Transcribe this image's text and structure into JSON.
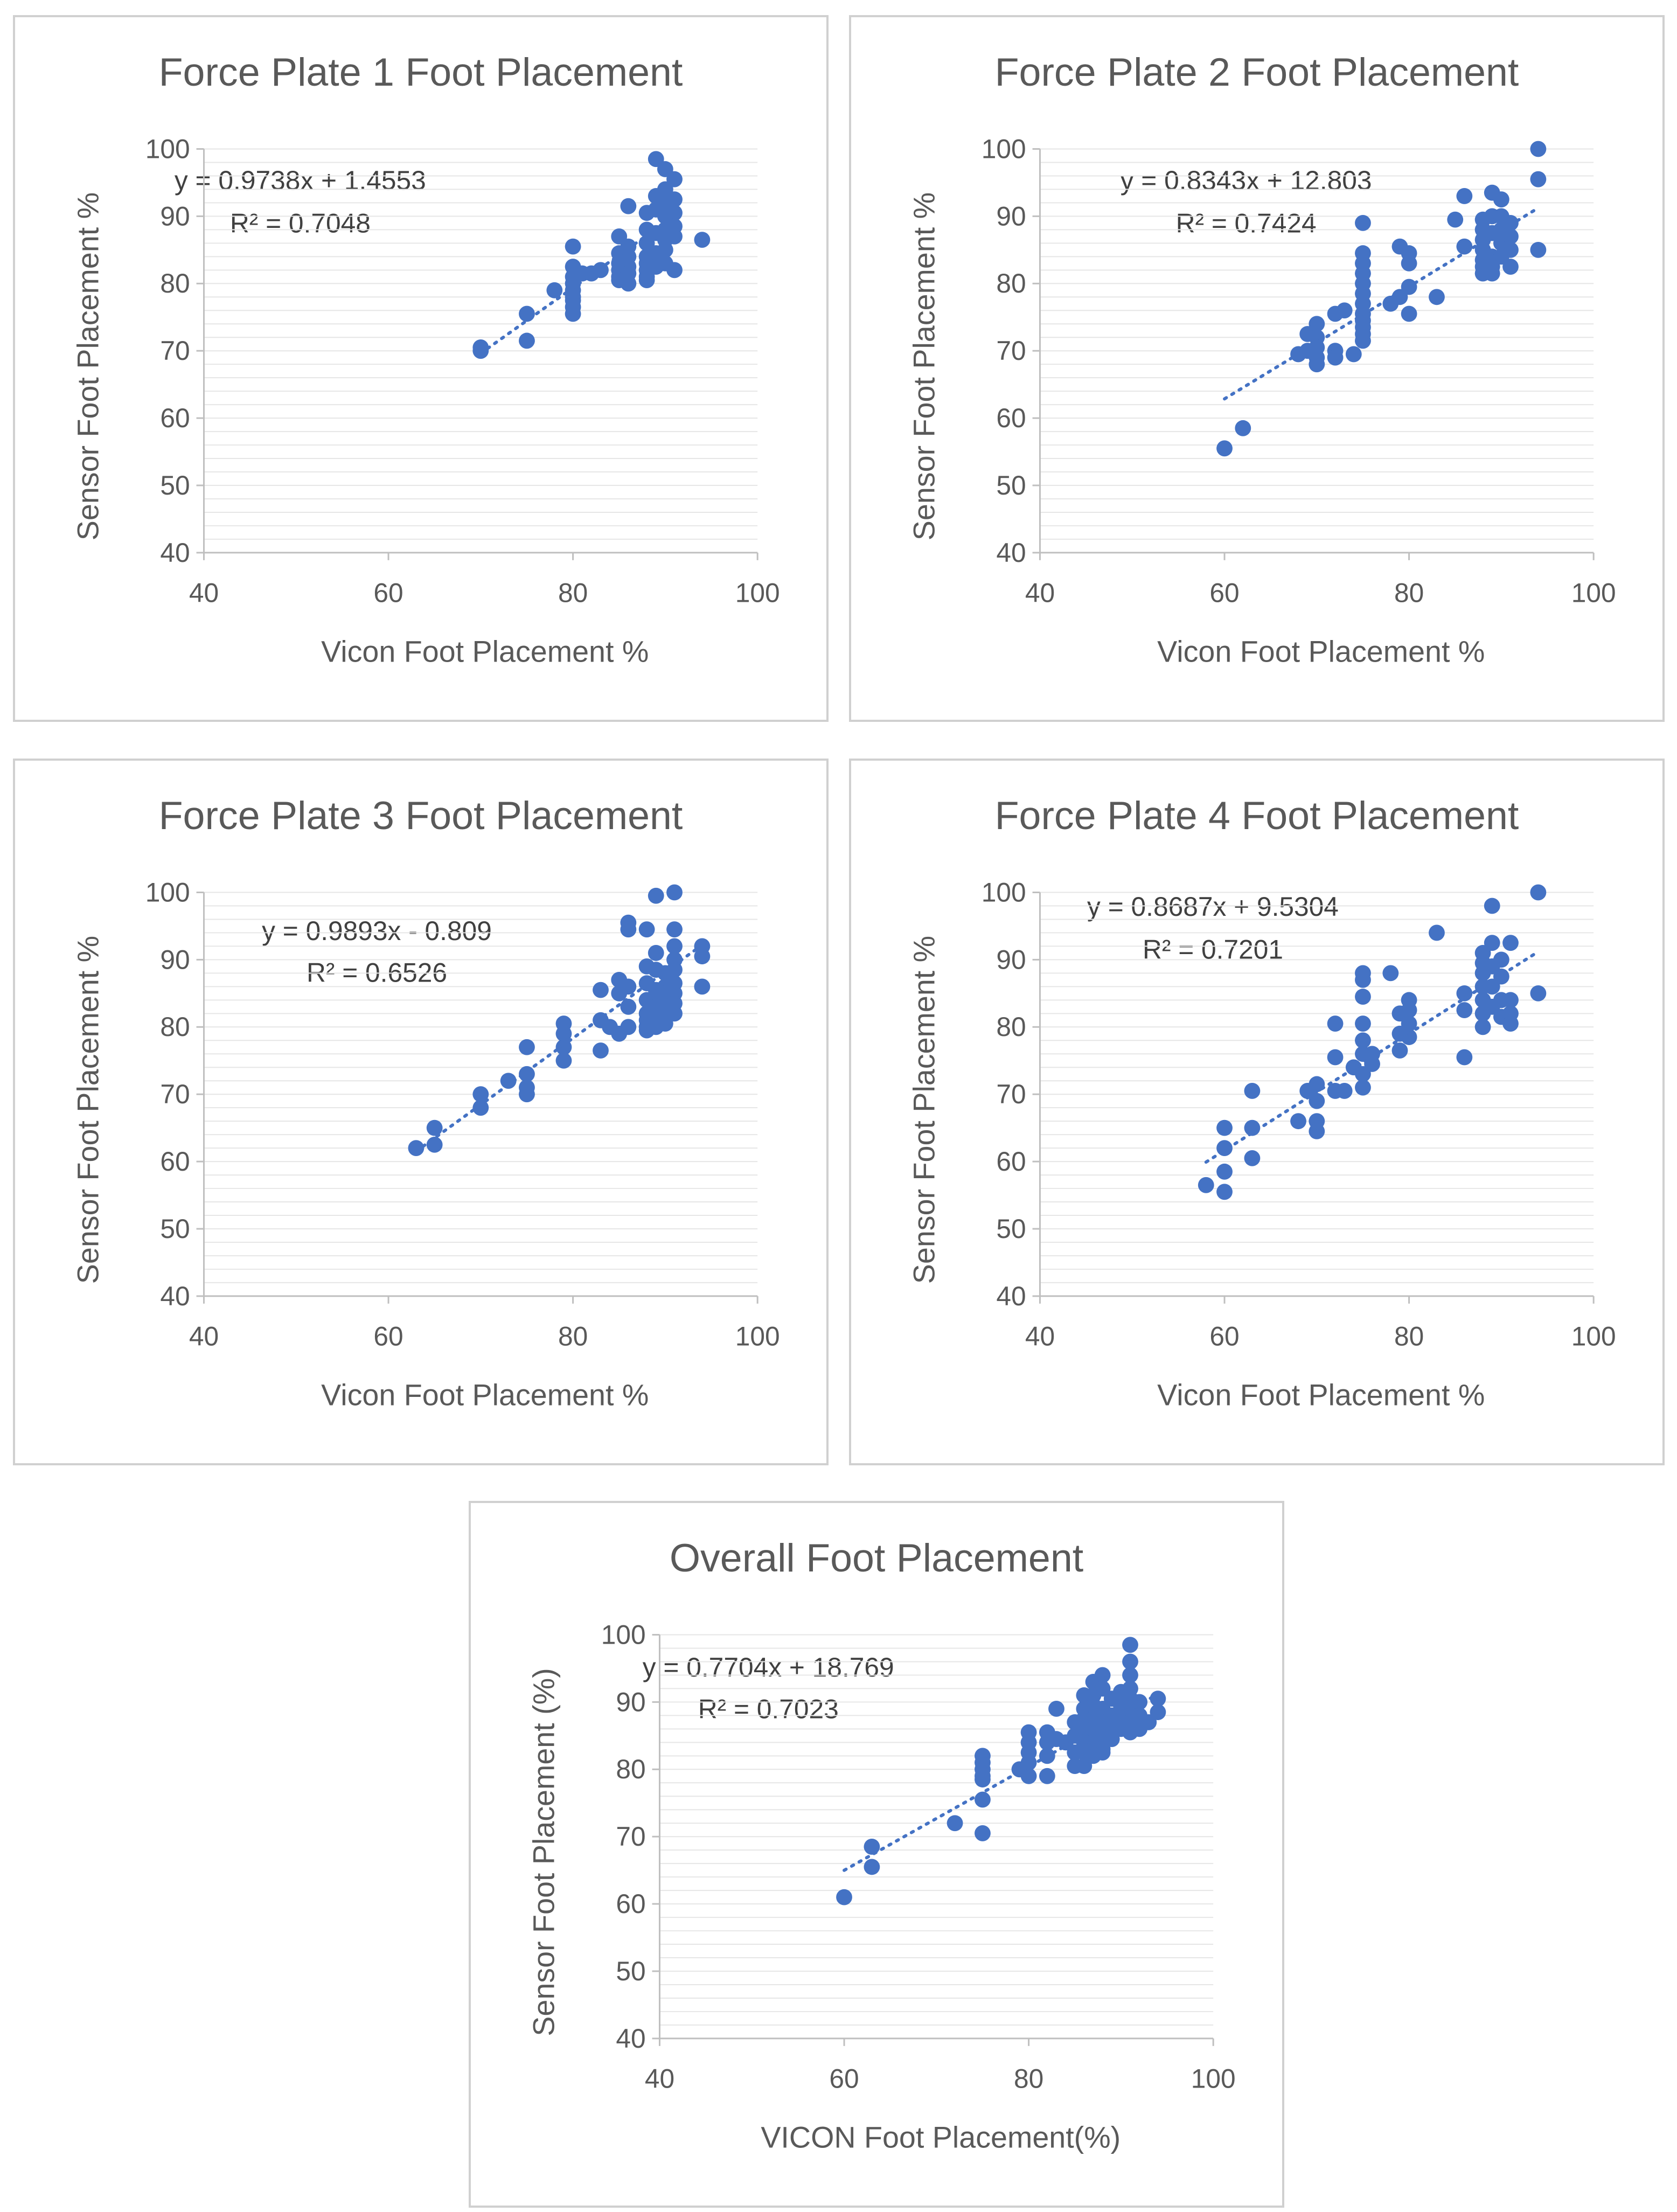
{
  "chart_data": [
    {
      "type": "scatter",
      "title": "Force Plate 1 Foot Placement",
      "xlabel": "Vicon Foot Placement %",
      "ylabel": "Sensor Foot Placement %",
      "xlim": [
        40,
        100
      ],
      "ylim": [
        40,
        100
      ],
      "xticks": [
        40,
        60,
        80,
        100
      ],
      "yticks": [
        40,
        50,
        60,
        70,
        80,
        90,
        100
      ],
      "trendline": {
        "slope": 0.9738,
        "intercept": 1.4553,
        "x_range": [
          70,
          91
        ]
      },
      "equation": "y = 0.9738x + 1.4553",
      "r_squared": "R² = 0.7048",
      "series": [
        {
          "name": "Force Plate 1",
          "x": [
            70,
            70,
            75,
            75,
            78,
            80,
            80,
            80,
            80,
            80,
            80,
            80,
            80,
            80,
            81,
            82,
            83,
            85,
            85,
            85,
            85,
            85,
            85,
            86,
            86,
            86,
            86,
            86,
            86,
            88,
            88,
            88,
            88,
            88,
            88,
            88,
            88,
            89,
            89,
            89,
            89,
            89,
            89,
            90,
            90,
            90,
            90,
            90,
            90,
            90,
            90,
            91,
            91,
            91,
            91,
            91,
            91,
            94
          ],
          "y": [
            70.5,
            70,
            75.5,
            71.5,
            79,
            85.5,
            82.5,
            81,
            80,
            79,
            78,
            76.5,
            75.5,
            77.5,
            81.5,
            81.5,
            82,
            87,
            84.5,
            83,
            82,
            81,
            80.5,
            91.5,
            85.5,
            84,
            82.5,
            81.5,
            80,
            90.5,
            88,
            86,
            84,
            83,
            82,
            81,
            80.5,
            98.5,
            93,
            91,
            87.5,
            84.5,
            82.5,
            97,
            94,
            92,
            90,
            88,
            86.5,
            85,
            83,
            95.5,
            92.5,
            90.5,
            88.5,
            87,
            82,
            86.5
          ]
        }
      ]
    },
    {
      "type": "scatter",
      "title": "Force Plate 2 Foot Placement",
      "xlabel": "Vicon Foot Placement %",
      "ylabel": "Sensor Foot Placement %",
      "xlim": [
        40,
        100
      ],
      "ylim": [
        40,
        100
      ],
      "xticks": [
        40,
        60,
        80,
        100
      ],
      "yticks": [
        40,
        50,
        60,
        70,
        80,
        90,
        100
      ],
      "trendline": {
        "slope": 0.8343,
        "intercept": 12.803,
        "x_range": [
          60,
          94
        ]
      },
      "equation": "y = 0.8343x + 12.803",
      "r_squared": "R² = 0.7424",
      "series": [
        {
          "name": "Force Plate 2",
          "x": [
            60,
            62,
            68,
            69,
            69,
            70,
            70,
            70,
            70,
            70,
            72,
            72,
            72,
            73,
            74,
            75,
            75,
            75,
            75,
            75,
            75,
            75,
            75,
            75,
            75,
            75,
            75,
            78,
            79,
            79,
            80,
            80,
            80,
            80,
            83,
            85,
            86,
            86,
            88,
            88,
            88,
            88,
            88,
            88,
            88,
            89,
            89,
            89,
            89,
            89,
            89,
            90,
            90,
            90,
            90,
            90,
            91,
            91,
            91,
            91,
            94,
            94,
            94
          ],
          "y": [
            55.5,
            58.5,
            69.5,
            72.5,
            70,
            74,
            72,
            70.5,
            69,
            68,
            75.5,
            70,
            69,
            76,
            69.5,
            89,
            84.5,
            83,
            81.5,
            80,
            78.5,
            77,
            75.5,
            74.5,
            73.5,
            72.5,
            71.5,
            77,
            85.5,
            78,
            84.5,
            83,
            79.5,
            75.5,
            78,
            89.5,
            93,
            85.5,
            89.5,
            88,
            86.5,
            85,
            83.5,
            82.5,
            81.5,
            93.5,
            90,
            87.5,
            84,
            82.5,
            81.5,
            92.5,
            90,
            88,
            86,
            84,
            89,
            87,
            85,
            82.5,
            100,
            95.5,
            85
          ]
        }
      ]
    },
    {
      "type": "scatter",
      "title": "Force Plate 3 Foot Placement",
      "xlabel": "Vicon Foot Placement %",
      "ylabel": "Sensor Foot Placement %",
      "xlim": [
        40,
        100
      ],
      "ylim": [
        40,
        100
      ],
      "xticks": [
        40,
        60,
        80,
        100
      ],
      "yticks": [
        40,
        50,
        60,
        70,
        80,
        90,
        100
      ],
      "trendline": {
        "slope": 0.9893,
        "intercept": -0.809,
        "x_range": [
          63,
          94
        ]
      },
      "equation": "y = 0.9893x - 0.809",
      "r_squared": "R² = 0.6526",
      "series": [
        {
          "name": "Force Plate 3",
          "x": [
            63,
            65,
            65,
            70,
            70,
            73,
            75,
            75,
            75,
            75,
            79,
            79,
            79,
            79,
            83,
            83,
            83,
            84,
            85,
            85,
            85,
            86,
            86,
            86,
            86,
            86,
            88,
            88,
            88,
            88,
            88,
            88,
            88,
            88,
            89,
            89,
            89,
            89,
            89,
            89,
            89,
            89,
            90,
            90,
            90,
            90,
            90,
            90,
            91,
            91,
            91,
            91,
            91,
            91,
            91,
            91,
            91,
            94,
            94,
            94
          ],
          "y": [
            62,
            65,
            62.5,
            70,
            68,
            72,
            77,
            73,
            71,
            70,
            80.5,
            79,
            77,
            75,
            85.5,
            81,
            76.5,
            80,
            87,
            85,
            79,
            95.5,
            94.5,
            86,
            83,
            80,
            94.5,
            89,
            86.5,
            84,
            82,
            81,
            80,
            79.5,
            99.5,
            91,
            88.5,
            85.5,
            84,
            83,
            82,
            80,
            88,
            86,
            85,
            83,
            81.5,
            80.5,
            100,
            94.5,
            92,
            90,
            88.5,
            86.5,
            85,
            83.5,
            82,
            92,
            90.5,
            86
          ]
        }
      ]
    },
    {
      "type": "scatter",
      "title": "Force Plate 4 Foot Placement",
      "xlabel": "Vicon Foot Placement %",
      "ylabel": "Sensor Foot Placement %",
      "xlim": [
        40,
        100
      ],
      "ylim": [
        40,
        100
      ],
      "xticks": [
        40,
        60,
        80,
        100
      ],
      "yticks": [
        40,
        50,
        60,
        70,
        80,
        90,
        100
      ],
      "trendline": {
        "slope": 0.8687,
        "intercept": 9.5304,
        "x_range": [
          58,
          94
        ]
      },
      "equation": "y = 0.8687x + 9.5304",
      "r_squared": "R² = 0.7201",
      "series": [
        {
          "name": "Force Plate 4",
          "x": [
            58,
            60,
            60,
            60,
            60,
            63,
            63,
            63,
            68,
            69,
            70,
            70,
            70,
            70,
            72,
            72,
            72,
            73,
            74,
            75,
            75,
            75,
            75,
            75,
            75,
            75,
            75,
            76,
            76,
            78,
            79,
            79,
            79,
            80,
            80,
            80,
            80,
            83,
            86,
            86,
            86,
            88,
            88,
            88,
            88,
            88,
            88,
            88,
            89,
            89,
            89,
            89,
            89,
            90,
            90,
            90,
            90,
            91,
            91,
            91,
            91,
            94,
            94
          ],
          "y": [
            56.5,
            65,
            62,
            58.5,
            55.5,
            70.5,
            65,
            60.5,
            66,
            70.5,
            71.5,
            69,
            66,
            64.5,
            80.5,
            75.5,
            70.5,
            70.5,
            74,
            88,
            87,
            84.5,
            80.5,
            78,
            76,
            73,
            71,
            76,
            74.5,
            88,
            82,
            79,
            76.5,
            84,
            82.5,
            80.5,
            78.5,
            94,
            85,
            82.5,
            75.5,
            91,
            89.5,
            88,
            86,
            84,
            82,
            80,
            98,
            92.5,
            89,
            86,
            83,
            90,
            87.5,
            84,
            81.5,
            92.5,
            84,
            82,
            80.5,
            100,
            85
          ]
        }
      ]
    },
    {
      "type": "scatter",
      "title": "Overall Foot Placement",
      "xlabel": "VICON Foot Placement(%)",
      "ylabel": "Sensor Foot Placement (%)",
      "xlim": [
        40,
        100
      ],
      "ylim": [
        40,
        100
      ],
      "xticks": [
        40,
        60,
        80,
        100
      ],
      "yticks": [
        40,
        50,
        60,
        70,
        80,
        90,
        100
      ],
      "trendline": {
        "slope": 0.7704,
        "intercept": 18.769,
        "x_range": [
          60,
          94
        ]
      },
      "equation": "y = 0.7704x + 18.769",
      "r_squared": "R² = 0.7023",
      "series": [
        {
          "name": "Overall",
          "x": [
            60,
            63,
            63,
            72,
            75,
            75,
            75,
            75,
            75,
            75,
            75,
            79,
            80,
            80,
            80,
            80,
            80,
            82,
            82,
            82,
            82,
            83,
            83,
            84,
            85,
            85,
            85,
            85,
            86,
            86,
            86,
            86,
            86,
            86,
            86,
            86,
            87,
            87,
            87,
            87,
            87,
            87,
            87,
            87,
            88,
            88,
            88,
            88,
            88,
            88,
            88,
            89,
            89,
            89,
            89,
            90,
            90,
            90,
            90,
            90,
            91,
            91,
            91,
            91,
            91,
            91,
            91,
            91,
            92,
            92,
            92,
            93,
            94,
            94
          ],
          "y": [
            61,
            68.5,
            65.5,
            72,
            82,
            81,
            79,
            78.5,
            75.5,
            70.5,
            80,
            80,
            85.5,
            84,
            82.5,
            81,
            79,
            85.5,
            84,
            82,
            79,
            89,
            84.5,
            84,
            87,
            85,
            82.5,
            80.5,
            91,
            89,
            87.5,
            86,
            85,
            84,
            82.5,
            80.5,
            93,
            91,
            89.5,
            87.5,
            86,
            84,
            83,
            82,
            94,
            92,
            89,
            87,
            85,
            83,
            82.5,
            90.5,
            88,
            86.5,
            84.5,
            91.5,
            89.5,
            87.5,
            86,
            90,
            98.5,
            96,
            94,
            92,
            90.5,
            89,
            87,
            85.5,
            90,
            88,
            86,
            87,
            90.5,
            88.5
          ]
        }
      ]
    }
  ]
}
